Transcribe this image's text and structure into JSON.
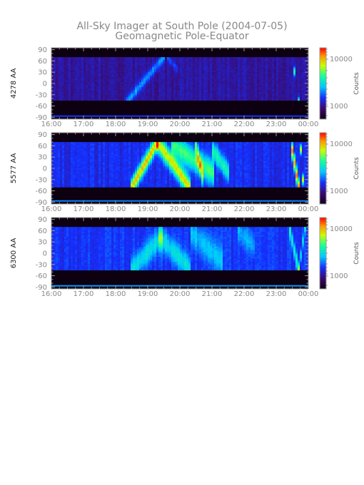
{
  "title": "All-Sky Imager at South Pole (2004-07-05)",
  "subtitle": "Geomagnetic Pole-Equator",
  "chart_data": [
    {
      "type": "heatmap",
      "panel_label": "4278 AA",
      "x_tick_labels": [
        "16:00",
        "17:00",
        "18:00",
        "19:00",
        "20:00",
        "21:00",
        "22:00",
        "23:00",
        "00:00"
      ],
      "y_tick_labels": [
        "90",
        "60",
        "30",
        "0",
        "-30",
        "-60",
        "-90"
      ],
      "y_ticks": [
        90,
        60,
        30,
        0,
        -30,
        -60,
        -90
      ],
      "ylim": [
        -95,
        95
      ],
      "xlim": [
        "16:00",
        "00:00"
      ],
      "colorbar": {
        "label": "Counts",
        "tick_labels": [
          "10000",
          "1000"
        ],
        "ticks": [
          10000,
          1000
        ],
        "scale": "log"
      },
      "data_band_y": [
        -45,
        70
      ],
      "base_intensity": 0.2,
      "features": [
        {
          "t0": 18.3,
          "t1": 19.5,
          "y0": -55,
          "y1": 70,
          "width": 0.07,
          "amp": 0.2
        },
        {
          "t0": 19.6,
          "t1": 19.9,
          "y0": 70,
          "y1": 40,
          "width": 0.05,
          "amp": 0.12
        },
        {
          "t0": 23.55,
          "t1": 23.6,
          "y0": 70,
          "y1": -45,
          "width": 0.06,
          "amp": 0.35
        },
        {
          "t0": 23.75,
          "t1": 23.7,
          "y0": 70,
          "y1": -45,
          "width": 0.05,
          "amp": 0.3
        }
      ]
    },
    {
      "type": "heatmap",
      "panel_label": "5577 AA",
      "x_tick_labels": [
        "16:00",
        "17:00",
        "18:00",
        "19:00",
        "20:00",
        "21:00",
        "22:00",
        "23:00",
        "00:00"
      ],
      "y_tick_labels": [
        "90",
        "60",
        "30",
        "0",
        "-30",
        "-60",
        "-90"
      ],
      "y_ticks": [
        90,
        60,
        30,
        0,
        -30,
        -60,
        -90
      ],
      "ylim": [
        -95,
        95
      ],
      "xlim": [
        "16:00",
        "00:00"
      ],
      "colorbar": {
        "label": "Counts",
        "tick_labels": [
          "10000",
          "1000"
        ],
        "ticks": [
          10000,
          1000
        ],
        "scale": "log"
      },
      "data_band_y": [
        -50,
        70
      ],
      "base_intensity": 0.28,
      "features": [
        {
          "t0": 18.5,
          "t1": 19.3,
          "y0": -50,
          "y1": 70,
          "width": 0.1,
          "amp": 0.55
        },
        {
          "t0": 19.3,
          "t1": 20.3,
          "y0": 70,
          "y1": -50,
          "width": 0.12,
          "amp": 0.5
        },
        {
          "t0": 19.8,
          "t1": 21.0,
          "y0": 60,
          "y1": -10,
          "width": 0.15,
          "amp": 0.35
        },
        {
          "t0": 20.5,
          "t1": 20.7,
          "y0": 60,
          "y1": -20,
          "width": 0.12,
          "amp": 0.3
        },
        {
          "t0": 21.0,
          "t1": 21.5,
          "y0": 50,
          "y1": -10,
          "width": 0.12,
          "amp": 0.3
        },
        {
          "t0": 23.45,
          "t1": 23.7,
          "y0": 70,
          "y1": -50,
          "width": 0.1,
          "amp": 0.6
        },
        {
          "t0": 23.75,
          "t1": 23.85,
          "y0": 70,
          "y1": -50,
          "width": 0.06,
          "amp": 0.5
        }
      ]
    },
    {
      "type": "heatmap",
      "panel_label": "6300 AA",
      "x_tick_labels": [
        "16:00",
        "17:00",
        "18:00",
        "19:00",
        "20:00",
        "21:00",
        "22:00",
        "23:00",
        "00:00"
      ],
      "y_tick_labels": [
        "90",
        "60",
        "30",
        "0",
        "-30",
        "-60",
        "-90"
      ],
      "y_ticks": [
        90,
        60,
        30,
        0,
        -30,
        -60,
        -90
      ],
      "ylim": [
        -95,
        95
      ],
      "xlim": [
        "16:00",
        "00:00"
      ],
      "colorbar": {
        "label": "Counts",
        "tick_labels": [
          "10000",
          "1000"
        ],
        "ticks": [
          10000,
          1000
        ],
        "scale": "log"
      },
      "data_band_y": [
        -45,
        70
      ],
      "base_intensity": 0.3,
      "features": [
        {
          "t0": 18.5,
          "t1": 19.4,
          "y0": -45,
          "y1": 40,
          "width": 0.15,
          "amp": 0.2
        },
        {
          "t0": 19.4,
          "t1": 20.3,
          "y0": 40,
          "y1": -40,
          "width": 0.15,
          "amp": 0.2
        },
        {
          "t0": 20.4,
          "t1": 21.3,
          "y0": 50,
          "y1": -20,
          "width": 0.18,
          "amp": 0.15
        },
        {
          "t0": 21.8,
          "t1": 22.3,
          "y0": 60,
          "y1": 20,
          "width": 0.15,
          "amp": 0.12
        },
        {
          "t0": 23.4,
          "t1": 23.7,
          "y0": 70,
          "y1": -45,
          "width": 0.1,
          "amp": 0.25
        },
        {
          "t0": 23.7,
          "t1": 23.9,
          "y0": -45,
          "y1": 70,
          "width": 0.08,
          "amp": 0.2
        }
      ]
    }
  ]
}
